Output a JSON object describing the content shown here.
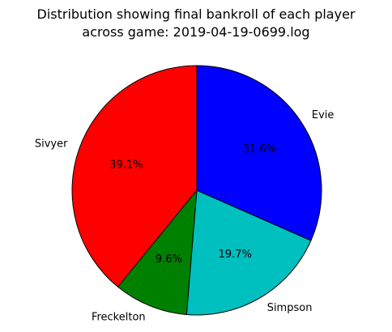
{
  "chart_data": {
    "type": "pie",
    "title": "Distribution showing final bankroll of each player\nacross game: 2019-04-19-0699.log",
    "title_lines": [
      "Distribution showing final bankroll of each player",
      "across game: 2019-04-19-0699.log"
    ],
    "start_angle_deg": 90,
    "direction": "counterclockwise",
    "slices": [
      {
        "label": "Sivyer",
        "value": 39.1,
        "pct_label": "39.1%",
        "color": "#ff0000"
      },
      {
        "label": "Freckelton",
        "value": 9.6,
        "pct_label": "9.6%",
        "color": "#008000"
      },
      {
        "label": "Simpson",
        "value": 19.7,
        "pct_label": "19.7%",
        "color": "#00bfbf"
      },
      {
        "label": "Evie",
        "value": 31.6,
        "pct_label": "31.6%",
        "color": "#0000ff"
      }
    ],
    "edge_color": "#000000"
  }
}
